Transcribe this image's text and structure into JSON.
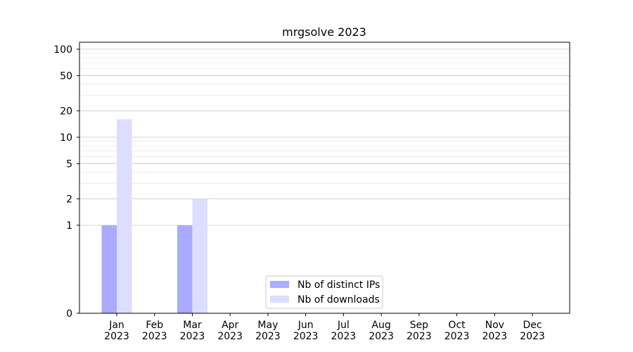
{
  "chart_data": {
    "type": "bar",
    "title": "mrgsolve 2023",
    "xlabel": "",
    "ylabel": "",
    "y_scale": "symlog",
    "y_ticks": [
      "0",
      "1",
      "2",
      "5",
      "10",
      "20",
      "50",
      "100"
    ],
    "ylim": [
      0,
      120
    ],
    "grid": true,
    "legend_position": "bottom-center",
    "categories": [
      [
        "Jan",
        "2023"
      ],
      [
        "Feb",
        "2023"
      ],
      [
        "Mar",
        "2023"
      ],
      [
        "Apr",
        "2023"
      ],
      [
        "May",
        "2023"
      ],
      [
        "Jun",
        "2023"
      ],
      [
        "Jul",
        "2023"
      ],
      [
        "Aug",
        "2023"
      ],
      [
        "Sep",
        "2023"
      ],
      [
        "Oct",
        "2023"
      ],
      [
        "Nov",
        "2023"
      ],
      [
        "Dec",
        "2023"
      ]
    ],
    "series": [
      {
        "name": "Nb of distinct IPs",
        "color": "#aaaaff",
        "values": [
          1,
          0,
          1,
          0,
          0,
          0,
          0,
          0,
          0,
          0,
          0,
          0
        ]
      },
      {
        "name": "Nb of downloads",
        "color": "#ddddff",
        "values": [
          16,
          0,
          2,
          0,
          0,
          0,
          0,
          0,
          0,
          0,
          0,
          0
        ]
      }
    ]
  }
}
